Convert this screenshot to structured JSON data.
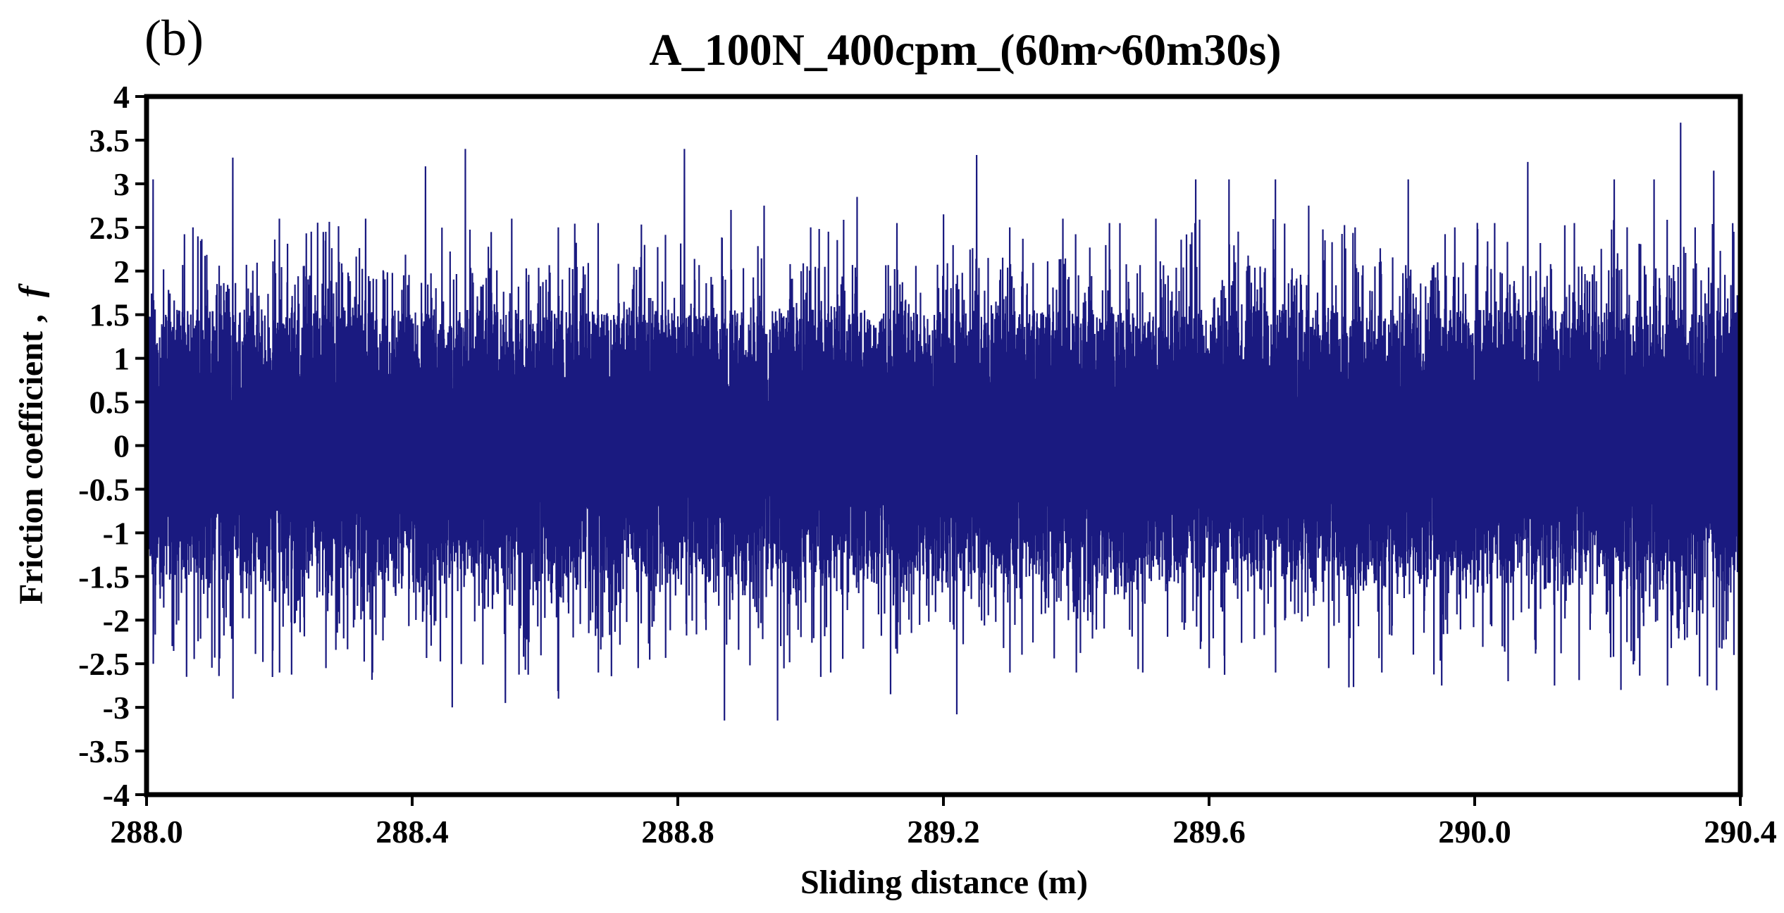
{
  "chart_data": {
    "type": "line",
    "panel_label": "(b)",
    "title": "A_100N_400cpm_(60m~60m30s)",
    "xlabel": "Sliding distance (m)",
    "ylabel_text": "Friction coefficient ,",
    "ylabel_symbol": "f",
    "xlim": [
      288.0,
      290.4
    ],
    "ylim": [
      -4,
      4
    ],
    "x_ticks": [
      288.0,
      288.4,
      288.8,
      289.2,
      289.6,
      290.0,
      290.4
    ],
    "x_tick_labels": [
      "288.0",
      "288.4",
      "288.8",
      "289.2",
      "289.6",
      "290.0",
      "290.4"
    ],
    "y_ticks": [
      4,
      3.5,
      3,
      2.5,
      2,
      1.5,
      1,
      0.5,
      0,
      -0.5,
      -1,
      -1.5,
      -2,
      -2.5,
      -3,
      -3.5,
      -4
    ],
    "y_tick_labels": [
      "4",
      "3.5",
      "3",
      "2.5",
      "2",
      "1.5",
      "1",
      "0.5",
      "0",
      "-0.5",
      "-1",
      "-1.5",
      "-2",
      "-2.5",
      "-3",
      "-3.5",
      "-4"
    ],
    "grid": false,
    "series": [
      {
        "name": "friction coefficient",
        "color": "#1a1a80",
        "description_stats": {
          "dense_band_min": -1.3,
          "dense_band_max": 1.3,
          "peak_max": 3.7,
          "peak_min": -3.15
        },
        "x_start": 288.0,
        "x_end": 290.4,
        "upper_peaks": [
          [
            288.01,
            3.05
          ],
          [
            288.07,
            2.5
          ],
          [
            288.13,
            3.3
          ],
          [
            288.2,
            2.6
          ],
          [
            288.27,
            2.45
          ],
          [
            288.33,
            2.6
          ],
          [
            288.42,
            3.2
          ],
          [
            288.48,
            3.4
          ],
          [
            288.55,
            2.6
          ],
          [
            288.62,
            2.5
          ],
          [
            288.68,
            2.55
          ],
          [
            288.75,
            2.3
          ],
          [
            288.81,
            3.4
          ],
          [
            288.88,
            2.7
          ],
          [
            288.93,
            2.75
          ],
          [
            289.0,
            2.5
          ],
          [
            289.07,
            2.85
          ],
          [
            289.13,
            2.55
          ],
          [
            289.2,
            2.65
          ],
          [
            289.25,
            3.33
          ],
          [
            289.3,
            2.5
          ],
          [
            289.38,
            2.6
          ],
          [
            289.45,
            2.55
          ],
          [
            289.52,
            2.6
          ],
          [
            289.58,
            3.05
          ],
          [
            289.63,
            3.05
          ],
          [
            289.7,
            3.05
          ],
          [
            289.75,
            2.75
          ],
          [
            289.82,
            2.5
          ],
          [
            289.9,
            3.05
          ],
          [
            289.97,
            2.5
          ],
          [
            290.03,
            2.55
          ],
          [
            290.08,
            3.25
          ],
          [
            290.15,
            2.55
          ],
          [
            290.21,
            3.05
          ],
          [
            290.27,
            3.05
          ],
          [
            290.31,
            3.7
          ],
          [
            290.36,
            3.15
          ],
          [
            290.39,
            2.45
          ]
        ],
        "lower_peaks": [
          [
            288.01,
            -2.5
          ],
          [
            288.06,
            -2.65
          ],
          [
            288.13,
            -2.9
          ],
          [
            288.2,
            -2.6
          ],
          [
            288.27,
            -2.55
          ],
          [
            288.34,
            -2.6
          ],
          [
            288.46,
            -3.0
          ],
          [
            288.54,
            -2.95
          ],
          [
            288.62,
            -2.9
          ],
          [
            288.68,
            -2.6
          ],
          [
            288.74,
            -2.55
          ],
          [
            288.87,
            -3.15
          ],
          [
            288.95,
            -3.15
          ],
          [
            289.03,
            -2.6
          ],
          [
            289.12,
            -2.85
          ],
          [
            289.22,
            -3.08
          ],
          [
            289.3,
            -2.6
          ],
          [
            289.4,
            -2.6
          ],
          [
            289.5,
            -2.6
          ],
          [
            289.6,
            -2.55
          ],
          [
            289.7,
            -2.6
          ],
          [
            289.78,
            -2.55
          ],
          [
            289.86,
            -2.6
          ],
          [
            289.95,
            -2.75
          ],
          [
            290.05,
            -2.7
          ],
          [
            290.12,
            -2.75
          ],
          [
            290.22,
            -2.8
          ],
          [
            290.29,
            -2.75
          ],
          [
            290.35,
            -2.75
          ],
          [
            290.39,
            -2.4
          ]
        ]
      }
    ]
  }
}
